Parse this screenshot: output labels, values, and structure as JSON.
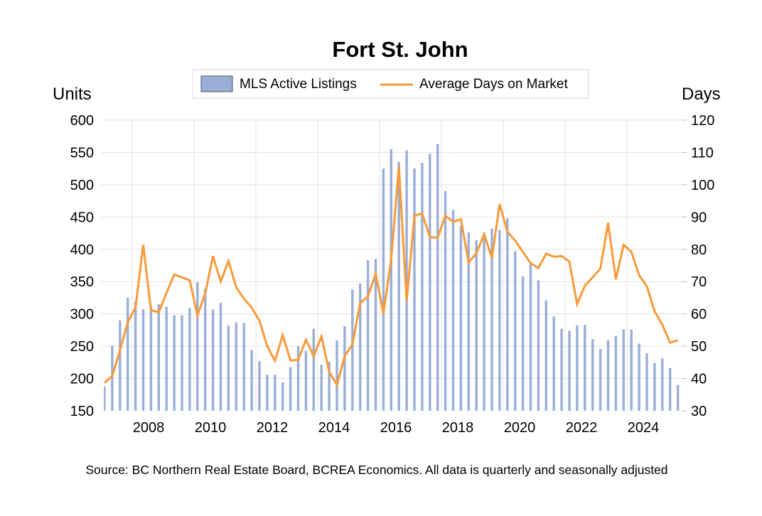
{
  "chart_data": {
    "type": "bar+line",
    "title": "Fort St. John",
    "source": "Source: BC Northern Real Estate Board, BCREA Economics. All data is quarterly and seasonally adjusted",
    "left_axis": {
      "label": "Units",
      "range": [
        150,
        600
      ],
      "ticks": [
        150,
        200,
        250,
        300,
        350,
        400,
        450,
        500,
        550,
        600
      ]
    },
    "right_axis": {
      "label": "Days",
      "range": [
        30,
        120
      ],
      "ticks": [
        30,
        40,
        50,
        60,
        70,
        80,
        90,
        100,
        110,
        120
      ]
    },
    "x_axis": {
      "frequency": "quarterly",
      "start": "2007 Q1",
      "end": "2025 Q3",
      "tick_labels": [
        "2008",
        "2010",
        "2012",
        "2014",
        "2016",
        "2018",
        "2020",
        "2022",
        "2024"
      ]
    },
    "grid": true,
    "legend": {
      "placement": "top-center",
      "entries": [
        {
          "name": "MLS Active Listings",
          "kind": "bar",
          "color": "#9AAED6"
        },
        {
          "name": "Average Days on Market",
          "kind": "line",
          "color": "#F79A3A"
        }
      ]
    },
    "series": [
      {
        "name": "MLS Active Listings",
        "type": "bar",
        "axis": "left",
        "color": "#9AAED6",
        "values": [
          188,
          251,
          290,
          325,
          319,
          307,
          311,
          315,
          311,
          298,
          298,
          309,
          349,
          339,
          307,
          317,
          282,
          287,
          286,
          244,
          227,
          206,
          206,
          194,
          218,
          250,
          243,
          277,
          221,
          226,
          259,
          281,
          338,
          347,
          383,
          385,
          525,
          555,
          535,
          553,
          525,
          534,
          548,
          563,
          490,
          461,
          436,
          426,
          414,
          419,
          432,
          430,
          448,
          397,
          358,
          378,
          352,
          321,
          296,
          277,
          274,
          282,
          283,
          261,
          246,
          259,
          266,
          276,
          276,
          254,
          239,
          224,
          231,
          216,
          190
        ]
      },
      {
        "name": "Average Days on Market",
        "type": "line",
        "axis": "right",
        "color": "#F79A3A",
        "values": [
          38.7,
          40.8,
          48.7,
          57.5,
          61.9,
          81.4,
          61.2,
          60.5,
          66.5,
          72.2,
          71.3,
          70.4,
          59.5,
          66.3,
          77.9,
          70.0,
          76.4,
          68.2,
          64.7,
          61.9,
          57.9,
          50.0,
          45.5,
          53.5,
          45.6,
          45.8,
          52.0,
          46.9,
          53.0,
          42.1,
          38.0,
          46.9,
          50.6,
          63.4,
          65.4,
          72.4,
          60.1,
          76.8,
          105.6,
          64.0,
          90.4,
          91.1,
          83.8,
          83.6,
          90.4,
          88.5,
          89.3,
          75.9,
          78.8,
          84.7,
          77.3,
          94.0,
          85.4,
          82.7,
          79.2,
          75.7,
          74.2,
          78.6,
          77.7,
          77.9,
          76.2,
          63.0,
          68.7,
          71.3,
          74.0,
          88.2,
          70.7,
          81.4,
          79.2,
          72.0,
          68.5,
          60.8,
          56.6,
          51.1,
          51.8
        ]
      }
    ]
  }
}
